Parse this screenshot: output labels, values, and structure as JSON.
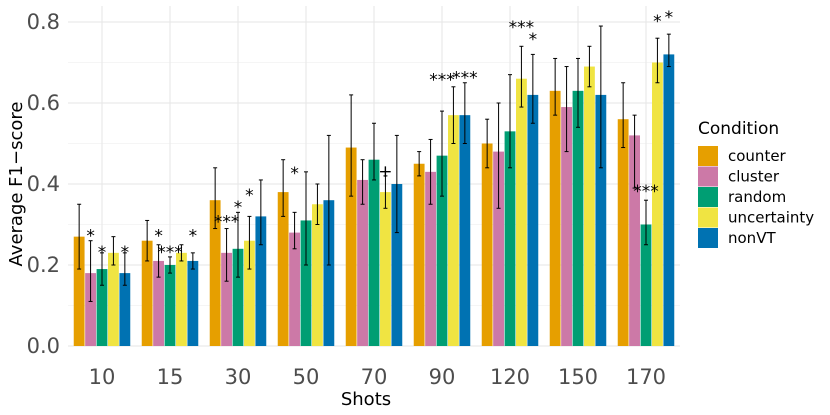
{
  "chart_data": {
    "type": "bar",
    "title": "",
    "xlabel": "Shots",
    "ylabel": "Average F1−score",
    "ylim": [
      0,
      0.8
    ],
    "yticks": [
      "0.0",
      "0.2",
      "0.4",
      "0.6",
      "0.8"
    ],
    "grid": true,
    "categories": [
      "10",
      "15",
      "30",
      "50",
      "70",
      "90",
      "120",
      "150",
      "170"
    ],
    "legend": {
      "title": "Condition",
      "position": "right"
    },
    "series": [
      {
        "name": "counter",
        "color": "#E69F00",
        "values": [
          0.27,
          0.26,
          0.36,
          0.38,
          0.49,
          0.45,
          0.5,
          0.63,
          0.56
        ],
        "lower": [
          0.19,
          0.21,
          0.29,
          0.32,
          0.37,
          0.42,
          0.44,
          0.57,
          0.49
        ],
        "upper": [
          0.35,
          0.31,
          0.44,
          0.46,
          0.62,
          0.48,
          0.56,
          0.71,
          0.65
        ]
      },
      {
        "name": "cluster",
        "color": "#CC79A7",
        "values": [
          0.18,
          0.21,
          0.23,
          0.28,
          0.41,
          0.43,
          0.48,
          0.59,
          0.52
        ],
        "lower": [
          0.11,
          0.17,
          0.16,
          0.24,
          0.35,
          0.35,
          0.34,
          0.48,
          0.39
        ],
        "upper": [
          0.26,
          0.25,
          0.29,
          0.33,
          0.46,
          0.51,
          0.6,
          0.69,
          0.57
        ]
      },
      {
        "name": "random",
        "color": "#009E73",
        "values": [
          0.19,
          0.2,
          0.24,
          0.31,
          0.46,
          0.47,
          0.53,
          0.63,
          0.3
        ],
        "lower": [
          0.15,
          0.18,
          0.17,
          0.2,
          0.41,
          0.37,
          0.44,
          0.54,
          0.25
        ],
        "upper": [
          0.23,
          0.22,
          0.33,
          0.43,
          0.55,
          0.58,
          0.67,
          0.71,
          0.36
        ]
      },
      {
        "name": "uncertainty",
        "color": "#F0E442",
        "values": [
          0.23,
          0.23,
          0.26,
          0.35,
          0.38,
          0.57,
          0.66,
          0.69,
          0.7
        ],
        "lower": [
          0.2,
          0.21,
          0.19,
          0.3,
          0.34,
          0.5,
          0.59,
          0.64,
          0.65
        ],
        "upper": [
          0.27,
          0.25,
          0.32,
          0.4,
          0.42,
          0.64,
          0.74,
          0.74,
          0.76
        ]
      },
      {
        "name": "nonVT",
        "color": "#0072B2",
        "values": [
          0.18,
          0.21,
          0.32,
          0.36,
          0.4,
          0.57,
          0.62,
          0.62,
          0.72
        ],
        "lower": [
          0.15,
          0.19,
          0.25,
          0.2,
          0.28,
          0.5,
          0.55,
          0.44,
          0.69
        ],
        "upper": [
          0.23,
          0.23,
          0.41,
          0.52,
          0.52,
          0.65,
          0.72,
          0.79,
          0.77
        ]
      }
    ],
    "annotations": [
      {
        "text": "*",
        "category": "10",
        "series": "cluster",
        "y": 0.285
      },
      {
        "text": "*",
        "category": "10",
        "series": "random",
        "y": 0.245
      },
      {
        "text": "*",
        "category": "10",
        "series": "nonVT",
        "y": 0.245
      },
      {
        "text": "*",
        "category": "15",
        "series": "cluster",
        "y": 0.285
      },
      {
        "text": "***",
        "category": "15",
        "series": "random",
        "y": 0.245
      },
      {
        "text": "*",
        "category": "15",
        "series": "nonVT",
        "y": 0.285
      },
      {
        "text": "***",
        "category": "30",
        "series": "cluster",
        "y": 0.32
      },
      {
        "text": "*",
        "category": "30",
        "series": "random",
        "y": 0.355
      },
      {
        "text": "*",
        "category": "30",
        "series": "uncertainty",
        "y": 0.385
      },
      {
        "text": "*",
        "category": "50",
        "series": "cluster",
        "y": 0.44
      },
      {
        "text": "+",
        "category": "70",
        "series": "uncertainty",
        "y": 0.445
      },
      {
        "text": "***",
        "category": "90",
        "series": "random",
        "y": 0.67
      },
      {
        "text": "***",
        "category": "90",
        "series": "nonVT",
        "y": 0.675
      },
      {
        "text": "***",
        "category": "120",
        "series": "uncertainty",
        "y": 0.8
      },
      {
        "text": "*",
        "category": "120",
        "series": "nonVT",
        "y": 0.77
      },
      {
        "text": "***",
        "category": "170",
        "series": "random",
        "y": 0.395
      },
      {
        "text": "*",
        "category": "170",
        "series": "uncertainty",
        "y": 0.815
      },
      {
        "text": "*",
        "category": "170",
        "series": "nonVT",
        "y": 0.825
      }
    ]
  }
}
